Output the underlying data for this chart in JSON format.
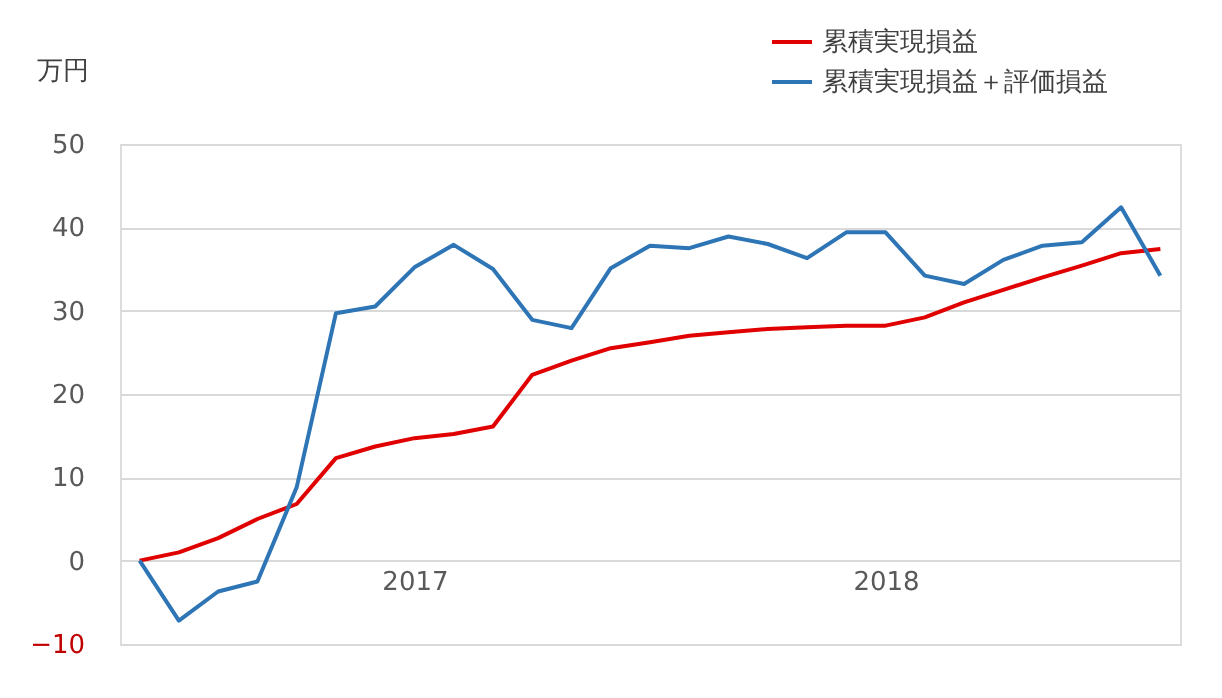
{
  "chart_data": {
    "type": "line",
    "ylabel": "万円",
    "categories": [
      null,
      null,
      null,
      null,
      null,
      null,
      null,
      "2017",
      null,
      null,
      null,
      null,
      null,
      null,
      null,
      null,
      null,
      null,
      null,
      "2018",
      null,
      null,
      null,
      null,
      null,
      null,
      null
    ],
    "series": [
      {
        "name": "累積実現損益",
        "color": "#e00000",
        "values": [
          0,
          1,
          2.7,
          5,
          6.8,
          12.3,
          13.7,
          14.7,
          15.2,
          16.1,
          22.3,
          24,
          25.5,
          26.2,
          27,
          27.4,
          27.8,
          28,
          28.2,
          28.2,
          29.2,
          31,
          32.5,
          34,
          35.4,
          36.9,
          37.4
        ]
      },
      {
        "name": "累積実現損益＋評価損益",
        "color": "#2e75b6",
        "values": [
          0,
          -7.2,
          -3.7,
          -2.5,
          8.8,
          29.7,
          30.5,
          35.2,
          37.9,
          35,
          28.9,
          27.9,
          35.1,
          37.8,
          37.5,
          38.9,
          38,
          36.3,
          39.4,
          39.4,
          34.2,
          33.2,
          36.1,
          37.8,
          38.2,
          42.4,
          34.2
        ]
      }
    ],
    "ylim": [
      -10,
      50
    ],
    "yticks": [
      -10,
      0,
      10,
      20,
      30,
      40,
      50
    ],
    "grid": "y",
    "legend": "top right",
    "marker": "none",
    "line_style": "solid"
  }
}
